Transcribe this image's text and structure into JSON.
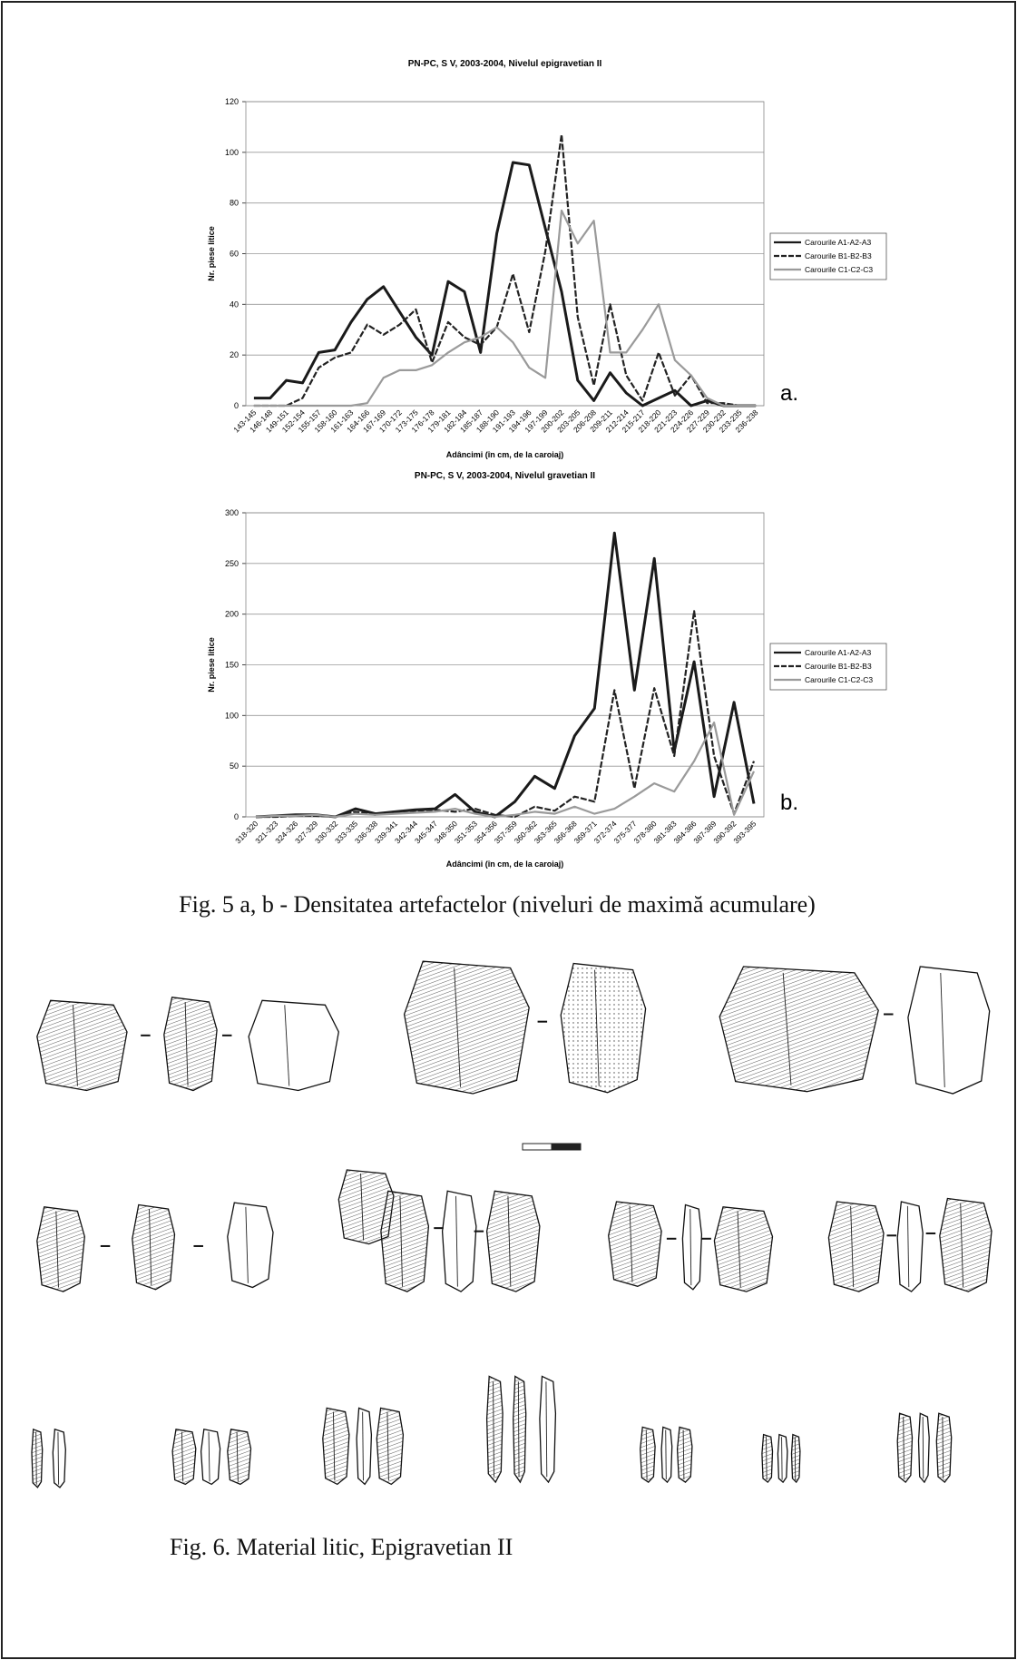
{
  "chart_data": [
    {
      "type": "line",
      "title": "PN-PC, S V, 2003-2004, Nivelul epigravetian II",
      "panel_label": "a.",
      "x_label": "Adâncimi (în cm, de la caroiaj)",
      "y_label": "Nr. piese litice",
      "categories": [
        "143-145",
        "146-148",
        "149-151",
        "152-154",
        "155-157",
        "158-160",
        "161-163",
        "164-166",
        "167-169",
        "170-172",
        "173-175",
        "176-178",
        "179-181",
        "182-184",
        "185-187",
        "188-190",
        "191-193",
        "194-196",
        "197-199",
        "200-202",
        "203-205",
        "206-208",
        "209-211",
        "212-214",
        "215-217",
        "218-220",
        "221-223",
        "224-226",
        "227-229",
        "230-232",
        "233-235",
        "236-238"
      ],
      "ylim": [
        0,
        120
      ],
      "yticks": [
        0,
        20,
        40,
        60,
        80,
        100,
        120
      ],
      "grid": true,
      "legend": "right",
      "series": [
        {
          "name": "Carourile A1-A2-A3",
          "color": "#1a1a1a",
          "style": "solid",
          "values": [
            3,
            3,
            10,
            9,
            21,
            22,
            33,
            42,
            47,
            37,
            27,
            20,
            49,
            45,
            21,
            68,
            96,
            95,
            70,
            45,
            10,
            2,
            13,
            5,
            0,
            3,
            6,
            0,
            2,
            0,
            0,
            0
          ]
        },
        {
          "name": "Carourile B1-B2-B3",
          "color": "#222222",
          "style": "dashed",
          "values": [
            0,
            0,
            0,
            3,
            15,
            19,
            21,
            32,
            28,
            32,
            38,
            17,
            33,
            27,
            24,
            31,
            52,
            29,
            61,
            107,
            35,
            8,
            40,
            12,
            2,
            21,
            4,
            12,
            1,
            1,
            0,
            0
          ]
        },
        {
          "name": "Carourile C1-C2-C3",
          "color": "#9a9a9a",
          "style": "solid",
          "values": [
            0,
            0,
            0,
            0,
            0,
            0,
            0,
            1,
            11,
            14,
            14,
            16,
            21,
            25,
            27,
            31,
            25,
            15,
            11,
            77,
            64,
            73,
            21,
            21,
            30,
            40,
            18,
            12,
            3,
            0,
            0,
            0
          ]
        }
      ]
    },
    {
      "type": "line",
      "title": "PN-PC, S V, 2003-2004, Nivelul gravetian II",
      "panel_label": "b.",
      "x_label": "Adâncimi (în cm, de la caroiaj)",
      "y_label": "Nr. piese litice",
      "categories": [
        "318-320",
        "321-323",
        "324-326",
        "327-329",
        "330-332",
        "333-335",
        "336-338",
        "339-341",
        "342-344",
        "345-347",
        "348-350",
        "351-353",
        "354-356",
        "357-359",
        "360-362",
        "363-365",
        "366-368",
        "369-371",
        "372-374",
        "375-377",
        "378-380",
        "381-383",
        "384-386",
        "387-389",
        "390-392",
        "393-395"
      ],
      "ylim": [
        0,
        300
      ],
      "yticks": [
        0,
        50,
        100,
        150,
        200,
        250,
        300
      ],
      "grid": true,
      "legend": "right",
      "series": [
        {
          "name": "Carourile A1-A2-A3",
          "color": "#1a1a1a",
          "style": "solid",
          "values": [
            0,
            1,
            2,
            2,
            0,
            8,
            3,
            5,
            7,
            8,
            22,
            5,
            0,
            15,
            40,
            28,
            80,
            107,
            280,
            125,
            255,
            65,
            153,
            20,
            113,
            13
          ]
        },
        {
          "name": "Carourile B1-B2-B3",
          "color": "#222222",
          "style": "dashed",
          "values": [
            0,
            0,
            1,
            1,
            0,
            5,
            2,
            5,
            6,
            7,
            5,
            8,
            2,
            0,
            10,
            6,
            20,
            15,
            125,
            28,
            127,
            60,
            203,
            60,
            3,
            55
          ]
        },
        {
          "name": "Carourile C1-C2-C3",
          "color": "#9a9a9a",
          "style": "solid",
          "values": [
            0,
            1,
            1,
            2,
            0,
            3,
            2,
            3,
            4,
            5,
            8,
            3,
            0,
            2,
            5,
            3,
            10,
            3,
            8,
            20,
            33,
            25,
            55,
            93,
            2,
            45
          ]
        }
      ]
    }
  ],
  "captions": [
    "Fig. 5 a, b - Densitatea artefactelor  (niveluri de maximă acumulare)",
    "Fig. 6. Material litic, Epigravetian II"
  ]
}
